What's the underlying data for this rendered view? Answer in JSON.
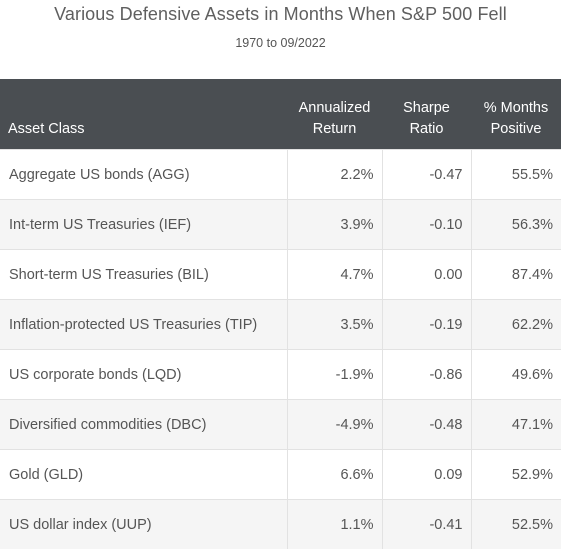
{
  "chart_data": {
    "type": "table",
    "title": "Various Defensive Assets in Months When S&P 500 Fell",
    "subtitle": "1970 to 09/2022",
    "columns": [
      {
        "line1": "",
        "line2": "Asset Class"
      },
      {
        "line1": "Annualized",
        "line2": "Return"
      },
      {
        "line1": "Sharpe",
        "line2": "Ratio"
      },
      {
        "line1": "% Months",
        "line2": "Positive"
      }
    ],
    "rows": [
      {
        "asset": "Aggregate US bonds (AGG)",
        "return": "2.2%",
        "sharpe": "-0.47",
        "positive": "55.5%"
      },
      {
        "asset": "Int-term US Treasuries (IEF)",
        "return": "3.9%",
        "sharpe": "-0.10",
        "positive": "56.3%"
      },
      {
        "asset": "Short-term US Treasuries (BIL)",
        "return": "4.7%",
        "sharpe": "0.00",
        "positive": "87.4%"
      },
      {
        "asset": "Inflation-protected US Treasuries (TIP)",
        "return": "3.5%",
        "sharpe": "-0.19",
        "positive": "62.2%"
      },
      {
        "asset": "US corporate bonds (LQD)",
        "return": "-1.9%",
        "sharpe": "-0.86",
        "positive": "49.6%"
      },
      {
        "asset": "Diversified commodities (DBC)",
        "return": "-4.9%",
        "sharpe": "-0.48",
        "positive": "47.1%"
      },
      {
        "asset": "Gold (GLD)",
        "return": "6.6%",
        "sharpe": "0.09",
        "positive": "52.9%"
      },
      {
        "asset": "US dollar index (UUP)",
        "return": "1.1%",
        "sharpe": "-0.41",
        "positive": "52.5%"
      }
    ]
  },
  "colors": {
    "header_bg": "#4a4e52",
    "header_text": "#ffffff",
    "row_alt_bg": "#f5f5f5",
    "text": "#555555"
  }
}
